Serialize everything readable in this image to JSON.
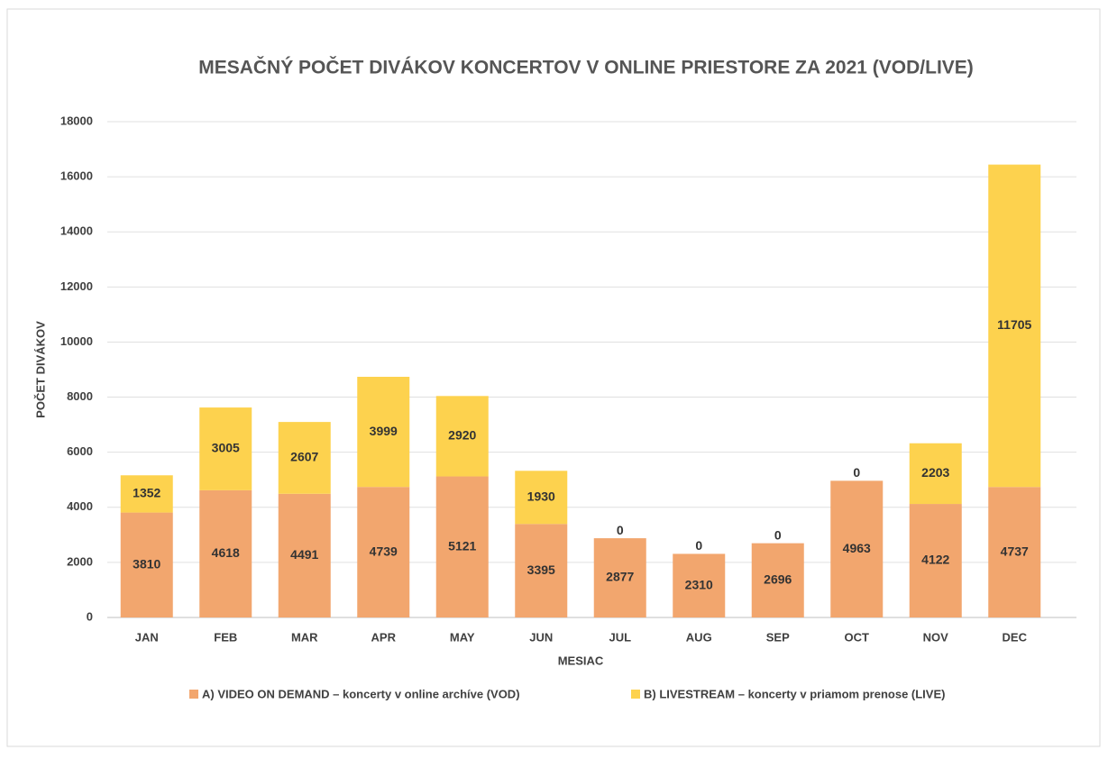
{
  "chart_data": {
    "type": "stacked_bar",
    "title": "MESAČNÝ POČET DIVÁKOV KONCERTOV V ONLINE PRIESTORE ZA 2021 (VOD/LIVE)",
    "x_label": "MESIAC",
    "y_label": "POČET DIVÁKOV",
    "categories": [
      "JAN",
      "FEB",
      "MAR",
      "APR",
      "MAY",
      "JUN",
      "JUL",
      "AUG",
      "SEP",
      "OCT",
      "NOV",
      "DEC"
    ],
    "series": [
      {
        "name": "A) VIDEO ON DEMAND – koncerty v online archíve (VOD)",
        "color": "#f2a66e",
        "values": [
          3810,
          4618,
          4491,
          4739,
          5121,
          3395,
          2877,
          2310,
          2696,
          4963,
          4122,
          4737
        ]
      },
      {
        "name": "B) LIVESTREAM – koncerty v priamom prenose (LIVE)",
        "color": "#fdd24e",
        "values": [
          1352,
          3005,
          2607,
          3999,
          2920,
          1930,
          0,
          0,
          0,
          0,
          2203,
          11705
        ]
      }
    ],
    "ylim": [
      0,
      18000
    ],
    "yticks": [
      0,
      2000,
      4000,
      6000,
      8000,
      10000,
      12000,
      14000,
      16000,
      18000
    ],
    "grid": true,
    "legend": "bottom"
  }
}
